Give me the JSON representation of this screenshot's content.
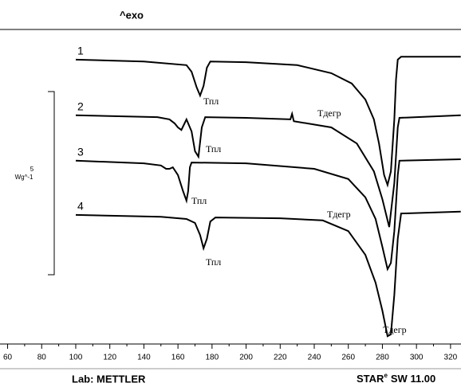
{
  "chart_data": {
    "type": "line",
    "header": "^exo",
    "xlim": [
      59,
      326
    ],
    "xticks": [
      60,
      80,
      100,
      120,
      140,
      160,
      180,
      200,
      220,
      240,
      260,
      280,
      300,
      320
    ],
    "ylim": [
      0,
      8.5
    ],
    "scale_bar": {
      "value": 5,
      "unit": "Wg^-1"
    },
    "series": [
      {
        "name": "1",
        "color": "#000000",
        "x": [
          100,
          140,
          165,
          168,
          171,
          173,
          175,
          177,
          179,
          200,
          230,
          250,
          262,
          270,
          275,
          278,
          281,
          283,
          285,
          287,
          288,
          289,
          291,
          326
        ],
        "values": [
          7.72,
          7.67,
          7.57,
          7.39,
          6.96,
          6.74,
          7.0,
          7.5,
          7.67,
          7.65,
          7.57,
          7.35,
          7.07,
          6.63,
          6.09,
          5.43,
          4.57,
          4.3,
          4.67,
          6.09,
          7.17,
          7.72,
          7.8,
          7.8
        ]
      },
      {
        "name": "2",
        "color": "#000000",
        "x": [
          100,
          148,
          155,
          158,
          160,
          162,
          165,
          168,
          170,
          172,
          174,
          176,
          200,
          226,
          227,
          228,
          250,
          265,
          275,
          280,
          284,
          287,
          289,
          290,
          326
        ],
        "values": [
          6.2,
          6.15,
          6.09,
          5.98,
          5.87,
          5.8,
          6.09,
          5.76,
          5.22,
          5.07,
          5.87,
          6.15,
          6.13,
          6.09,
          6.24,
          6.04,
          5.87,
          5.43,
          4.67,
          3.91,
          3.15,
          4.35,
          5.87,
          6.13,
          6.2
        ]
      },
      {
        "name": "3",
        "color": "#000000",
        "x": [
          100,
          140,
          150,
          153,
          155,
          157,
          160,
          163,
          165,
          166,
          167,
          168,
          200,
          240,
          260,
          270,
          276,
          280,
          283,
          285,
          287,
          289,
          290,
          326
        ],
        "values": [
          4.96,
          4.89,
          4.83,
          4.74,
          4.74,
          4.78,
          4.57,
          4.13,
          3.87,
          4.13,
          4.78,
          4.91,
          4.89,
          4.74,
          4.46,
          3.96,
          3.37,
          2.61,
          2.0,
          2.17,
          3.04,
          4.57,
          4.96,
          5.0
        ]
      },
      {
        "name": "4",
        "color": "#000000",
        "x": [
          100,
          150,
          165,
          170,
          173,
          175,
          177,
          179,
          182,
          220,
          245,
          260,
          270,
          276,
          280,
          283,
          285,
          287,
          289,
          291,
          326
        ],
        "values": [
          3.48,
          3.43,
          3.37,
          3.26,
          2.93,
          2.57,
          2.83,
          3.3,
          3.41,
          3.39,
          3.33,
          3.04,
          2.39,
          1.63,
          0.87,
          0.17,
          0.22,
          1.3,
          2.83,
          3.52,
          3.57
        ]
      }
    ],
    "annotations": [
      "Тпл",
      "Тпл",
      "Тпл",
      "Тпл",
      "Тдегр",
      "Тдегр",
      "Тдегр"
    ],
    "footer_left": "Lab: METTLER",
    "footer_right": {
      "main": "STAR",
      "sup": "e",
      "rest": "SW 11.00"
    }
  }
}
